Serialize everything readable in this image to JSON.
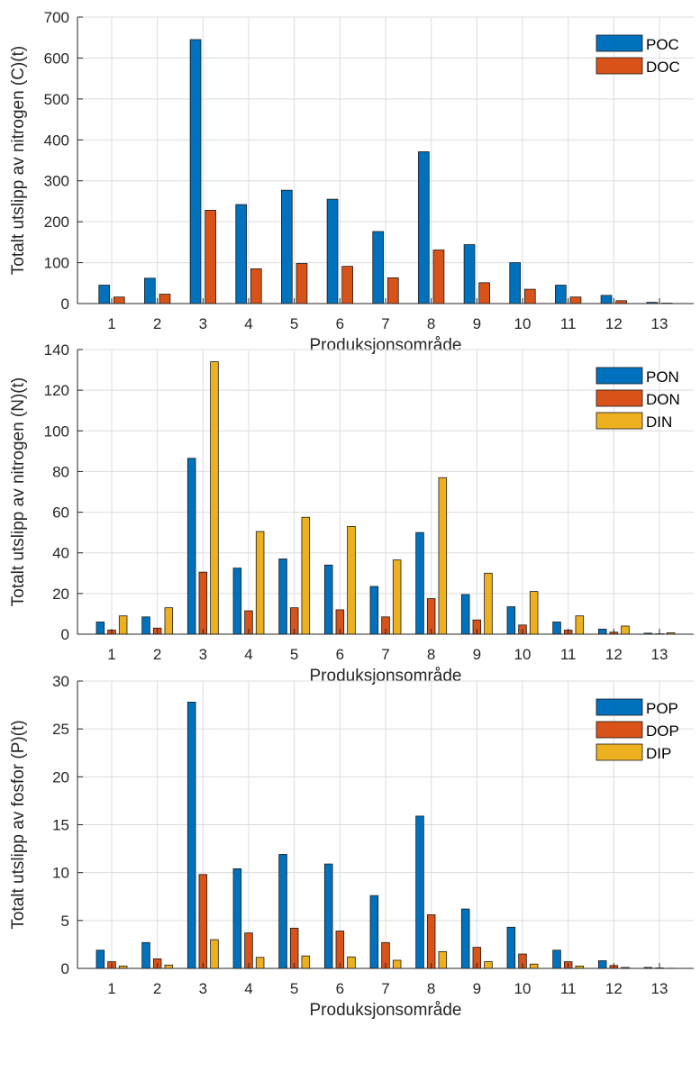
{
  "chart_data": [
    {
      "type": "bar",
      "categories": [
        "1",
        "2",
        "3",
        "4",
        "5",
        "6",
        "7",
        "8",
        "9",
        "10",
        "11",
        "12",
        "13"
      ],
      "xlabel": "Produksjonsområde",
      "ylabel": "Totalt utslipp av nitrogen (C)(t)",
      "ylim": [
        0,
        700
      ],
      "yticks": [
        0,
        100,
        200,
        300,
        400,
        500,
        600,
        700
      ],
      "grid": true,
      "legend_position": "top-right",
      "series": [
        {
          "name": "POC",
          "color": "#0072BD",
          "values": [
            45,
            62,
            645,
            242,
            277,
            255,
            176,
            371,
            144,
            100,
            45,
            20,
            3
          ]
        },
        {
          "name": "DOC",
          "color": "#D95319",
          "values": [
            16,
            23,
            228,
            85,
            98,
            91,
            63,
            131,
            51,
            35,
            16,
            7,
            1
          ]
        }
      ]
    },
    {
      "type": "bar",
      "categories": [
        "1",
        "2",
        "3",
        "4",
        "5",
        "6",
        "7",
        "8",
        "9",
        "10",
        "11",
        "12",
        "13"
      ],
      "xlabel": "Produksjonsområde",
      "ylabel": "Totalt utslipp av nitrogen (N)(t)",
      "ylim": [
        0,
        140
      ],
      "yticks": [
        0,
        20,
        40,
        60,
        80,
        100,
        120,
        140
      ],
      "grid": true,
      "legend_position": "top-right",
      "series": [
        {
          "name": "PON",
          "color": "#0072BD",
          "values": [
            6,
            8.5,
            86.5,
            32.5,
            37,
            34,
            23.5,
            50,
            19.5,
            13.5,
            6,
            2.5,
            0.5
          ]
        },
        {
          "name": "DON",
          "color": "#D95319",
          "values": [
            2,
            3,
            30.5,
            11.5,
            13,
            12,
            8.5,
            17.5,
            7,
            4.5,
            2,
            1,
            0.2
          ]
        },
        {
          "name": "DIN",
          "color": "#EDB120",
          "values": [
            9,
            13,
            134,
            50.5,
            57.5,
            53,
            36.5,
            77,
            30,
            21,
            9,
            4,
            0.7
          ]
        }
      ]
    },
    {
      "type": "bar",
      "categories": [
        "1",
        "2",
        "3",
        "4",
        "5",
        "6",
        "7",
        "8",
        "9",
        "10",
        "11",
        "12",
        "13"
      ],
      "xlabel": "Produksjonsområde",
      "ylabel": "Totalt utslipp av fosfor (P)(t)",
      "ylim": [
        0,
        30
      ],
      "yticks": [
        0,
        5,
        10,
        15,
        20,
        25,
        30
      ],
      "grid": true,
      "legend_position": "top-right",
      "series": [
        {
          "name": "POP",
          "color": "#0072BD",
          "values": [
            1.9,
            2.7,
            27.8,
            10.4,
            11.9,
            10.9,
            7.6,
            15.9,
            6.2,
            4.3,
            1.9,
            0.8,
            0.1
          ]
        },
        {
          "name": "DOP",
          "color": "#D95319",
          "values": [
            0.7,
            1.0,
            9.8,
            3.7,
            4.2,
            3.9,
            2.7,
            5.6,
            2.2,
            1.5,
            0.7,
            0.3,
            0.05
          ]
        },
        {
          "name": "DIP",
          "color": "#EDB120",
          "values": [
            0.25,
            0.35,
            3.0,
            1.15,
            1.3,
            1.2,
            0.85,
            1.75,
            0.7,
            0.45,
            0.25,
            0.1,
            0.02
          ]
        }
      ]
    }
  ]
}
